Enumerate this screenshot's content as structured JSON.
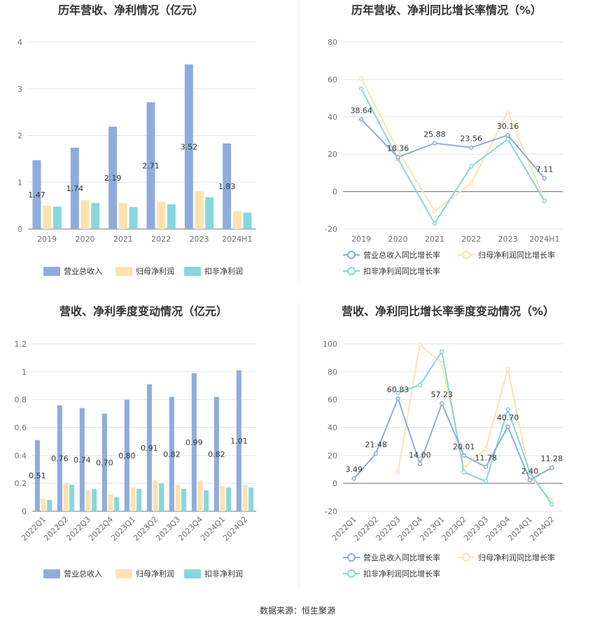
{
  "source": "数据来源：恒生聚源",
  "colors": {
    "revenue": "#8facdc",
    "parent_profit": "#fde2b0",
    "deducted_profit": "#88d6dd"
  },
  "chart_data": [
    {
      "type": "bar",
      "title": "历年营收、净利情况（亿元）",
      "categories": [
        "2019",
        "2020",
        "2021",
        "2022",
        "2023",
        "2024H1"
      ],
      "ylim": [
        0,
        4
      ],
      "yticks": [
        "0",
        "1",
        "2",
        "3",
        "4"
      ],
      "series": [
        {
          "name": "营业总收入",
          "values": [
            1.47,
            1.74,
            2.19,
            2.71,
            3.52,
            1.83
          ],
          "labels": [
            "1.47",
            "1.74",
            "2.19",
            "2.71",
            "3.52",
            "1.83"
          ]
        },
        {
          "name": "归母净利润",
          "values": [
            0.5,
            0.62,
            0.56,
            0.58,
            0.81,
            0.38
          ]
        },
        {
          "name": "扣非净利润",
          "values": [
            0.48,
            0.56,
            0.47,
            0.53,
            0.68,
            0.35
          ]
        }
      ],
      "legend": "bottom",
      "grid": true
    },
    {
      "type": "line",
      "title": "历年营收、净利同比增长率情况（%）",
      "categories": [
        "2019",
        "2020",
        "2021",
        "2022",
        "2023",
        "2024H1"
      ],
      "ylim": [
        -20,
        80
      ],
      "yticks": [
        "-20",
        "0",
        "20",
        "40",
        "60",
        "80"
      ],
      "series": [
        {
          "name": "营业总收入同比增长率",
          "values": [
            38.64,
            18.36,
            25.88,
            23.56,
            30.16,
            7.11
          ],
          "labels": [
            "38.64",
            "18.36",
            "25.88",
            "23.56",
            "30.16",
            "7.11"
          ]
        },
        {
          "name": "归母净利润同比增长率",
          "values": [
            60.5,
            22.0,
            -10.5,
            4.5,
            42.5,
            -4.0
          ]
        },
        {
          "name": "扣非净利润同比增长率",
          "values": [
            55.0,
            17.5,
            -17.0,
            13.5,
            28.0,
            -5.0
          ]
        }
      ],
      "legend": "bottom",
      "grid": true
    },
    {
      "type": "bar",
      "title": "营收、净利季度变动情况（亿元）",
      "categories": [
        "2022Q1",
        "2022Q2",
        "2022Q3",
        "2022Q4",
        "2023Q1",
        "2023Q2",
        "2023Q3",
        "2023Q4",
        "2024Q1",
        "2024Q2"
      ],
      "ylim": [
        0,
        1.2
      ],
      "yticks": [
        "0",
        "0.2",
        "0.4",
        "0.6",
        "0.8",
        "1",
        "1.2"
      ],
      "series": [
        {
          "name": "营业总收入",
          "values": [
            0.51,
            0.76,
            0.74,
            0.7,
            0.8,
            0.91,
            0.82,
            0.99,
            0.82,
            1.01
          ],
          "labels": [
            "0.51",
            "0.76",
            "0.74",
            "0.70",
            "0.80",
            "0.91",
            "0.82",
            "0.99",
            "0.82",
            "1.01"
          ]
        },
        {
          "name": "归母净利润",
          "values": [
            0.09,
            0.2,
            0.15,
            0.12,
            0.17,
            0.22,
            0.19,
            0.22,
            0.18,
            0.19
          ]
        },
        {
          "name": "扣非净利润",
          "values": [
            0.08,
            0.19,
            0.16,
            0.1,
            0.16,
            0.2,
            0.16,
            0.15,
            0.17,
            0.17
          ]
        }
      ],
      "legend": "bottom",
      "grid": true
    },
    {
      "type": "line",
      "title": "营收、净利同比增长率季度变动情况（%）",
      "categories": [
        "2022Q1",
        "2022Q2",
        "2022Q3",
        "2022Q4",
        "2023Q1",
        "2023Q2",
        "2023Q3",
        "2023Q4",
        "2024Q1",
        "2024Q2"
      ],
      "ylim": [
        -20,
        100
      ],
      "yticks": [
        "-20",
        "0",
        "20",
        "40",
        "60",
        "80",
        "100"
      ],
      "series": [
        {
          "name": "营业总收入同比增长率",
          "values": [
            3.49,
            21.48,
            60.83,
            14.0,
            57.23,
            20.01,
            11.78,
            40.7,
            2.4,
            11.28
          ],
          "labels": [
            "3.49",
            "21.48",
            "60.83",
            "14.00",
            "57.23",
            "20.01",
            "11.78",
            "40.70",
            "2.40",
            "11.28"
          ]
        },
        {
          "name": "归母净利润同比增长率",
          "values": [
            null,
            null,
            8.0,
            99.5,
            86.0,
            11.0,
            25.0,
            82.0,
            5.0,
            -12.5
          ]
        },
        {
          "name": "扣非净利润同比增长率",
          "values": [
            null,
            null,
            65.0,
            70.5,
            94.5,
            8.0,
            1.5,
            53.0,
            8.0,
            -15.0
          ]
        }
      ],
      "legend": "bottom",
      "grid": true
    }
  ]
}
